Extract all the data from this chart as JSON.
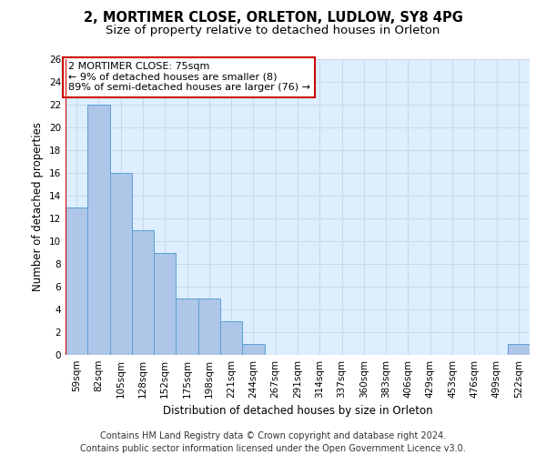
{
  "title": "2, MORTIMER CLOSE, ORLETON, LUDLOW, SY8 4PG",
  "subtitle": "Size of property relative to detached houses in Orleton",
  "xlabel": "Distribution of detached houses by size in Orleton",
  "ylabel": "Number of detached properties",
  "categories": [
    "59sqm",
    "82sqm",
    "105sqm",
    "128sqm",
    "152sqm",
    "175sqm",
    "198sqm",
    "221sqm",
    "244sqm",
    "267sqm",
    "291sqm",
    "314sqm",
    "337sqm",
    "360sqm",
    "383sqm",
    "406sqm",
    "429sqm",
    "453sqm",
    "476sqm",
    "499sqm",
    "522sqm"
  ],
  "values": [
    13,
    22,
    16,
    11,
    9,
    5,
    5,
    3,
    1,
    0,
    0,
    0,
    0,
    0,
    0,
    0,
    0,
    0,
    0,
    0,
    1
  ],
  "bar_color": "#aec6e8",
  "bar_edge_color": "#5a9fd4",
  "annotation_text": "2 MORTIMER CLOSE: 75sqm\n← 9% of detached houses are smaller (8)\n89% of semi-detached houses are larger (76) →",
  "annotation_box_color": "#ffffff",
  "annotation_box_edge_color": "#cc0000",
  "ylim": [
    0,
    26
  ],
  "yticks": [
    0,
    2,
    4,
    6,
    8,
    10,
    12,
    14,
    16,
    18,
    20,
    22,
    24,
    26
  ],
  "grid_color": "#c8d8e8",
  "background_color": "#ddeeff",
  "footer_line1": "Contains HM Land Registry data © Crown copyright and database right 2024.",
  "footer_line2": "Contains public sector information licensed under the Open Government Licence v3.0.",
  "title_fontsize": 10.5,
  "subtitle_fontsize": 9.5,
  "axis_label_fontsize": 8.5,
  "tick_fontsize": 7.5,
  "annotation_fontsize": 8,
  "footer_fontsize": 7
}
